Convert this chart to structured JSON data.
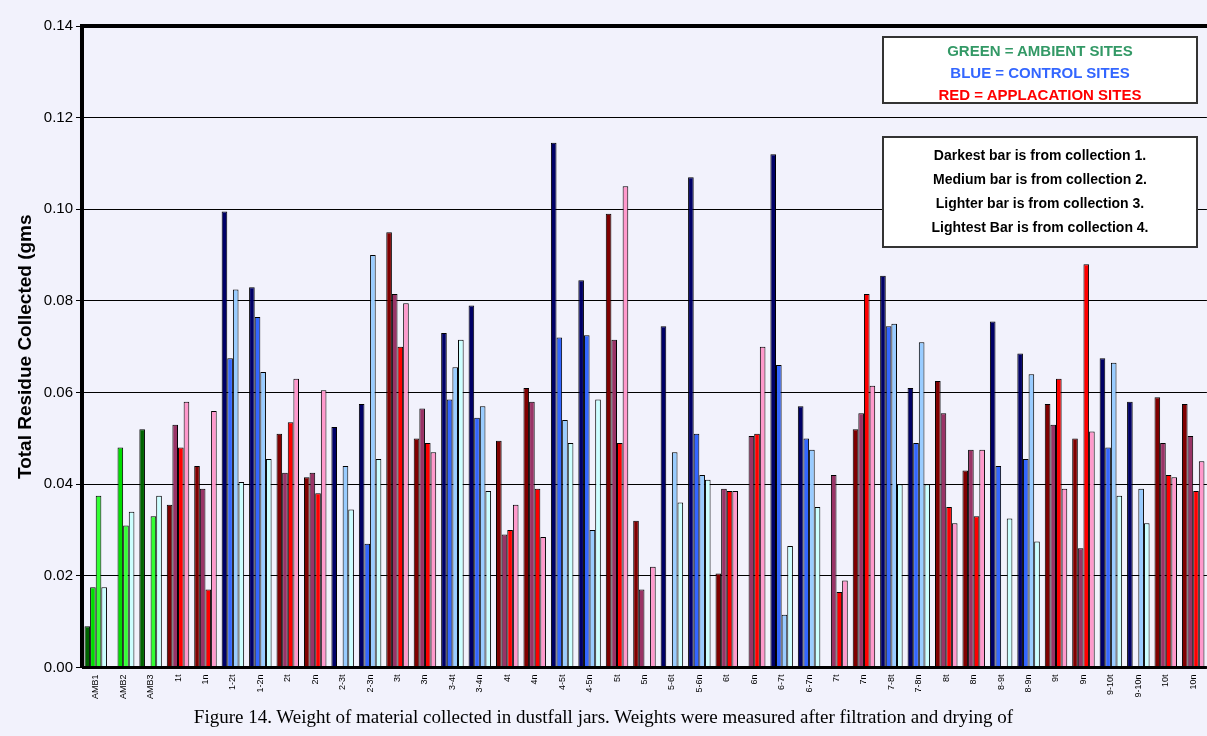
{
  "chart_data": {
    "type": "bar",
    "ylabel": "Total Residue Collected (gms",
    "categories": [
      "AMB1",
      "AMB2",
      "AMB3",
      "1t",
      "1n",
      "1-2t",
      "1-2n",
      "2t",
      "2n",
      "2-3t",
      "2-3n",
      "3t",
      "3n",
      "3-4t",
      "3-4n",
      "4t",
      "4n",
      "4-5t",
      "4-5n",
      "5t",
      "5n",
      "5-6t",
      "5-6n",
      "6t",
      "6n",
      "6-7t",
      "6-7n",
      "7t",
      "7n",
      "7-8t",
      "7-8n",
      "8t",
      "8n",
      "8-9t",
      "8-9n",
      "9t",
      "9n",
      "9-10t",
      "9-10n",
      "10t",
      "10n"
    ],
    "series": [
      {
        "colors": [
          "#006400",
          "#006400",
          "#006400",
          "#800000",
          "#800000",
          "#000066",
          "#000066",
          "#800000",
          "#800000",
          "#000066",
          "#000066",
          "#800000",
          "#800000",
          "#000066",
          "#000066",
          "#800000",
          "#800000",
          "#000066",
          "#000066",
          "#800000",
          "#800000",
          "#000066",
          "#000066",
          "#800000",
          "#800000",
          "#000066",
          "#000066",
          "#800000",
          "#800000",
          "#000066",
          "#000066",
          "#800000",
          "#800000",
          "#000066",
          "#000066",
          "#800000",
          "#800000",
          "#000066",
          "#000066",
          "#800000",
          "#800000"
        ],
        "values": [
          0.009,
          null,
          0.052,
          0.0355,
          0.044,
          0.0995,
          0.083,
          0.051,
          0.0415,
          0.0525,
          0.0575,
          0.095,
          0.05,
          0.073,
          0.079,
          0.0495,
          0.061,
          0.1145,
          0.0845,
          0.099,
          0.032,
          0.0745,
          0.107,
          0.0205,
          null,
          0.112,
          0.057,
          null,
          0.052,
          0.0855,
          0.061,
          0.0625,
          0.043,
          0.0755,
          0.0685,
          0.0575,
          0.05,
          0.0675,
          0.058,
          0.059,
          0.0575
        ]
      },
      {
        "colors": [
          "#00dd00",
          "#00dd00",
          "#00dd00",
          "#993366",
          "#993366",
          "#3366ff",
          "#3366ff",
          "#993366",
          "#993366",
          "#3366ff",
          "#3366ff",
          "#993366",
          "#993366",
          "#3366ff",
          "#3366ff",
          "#993366",
          "#993366",
          "#3366ff",
          "#3366ff",
          "#993366",
          "#993366",
          "#3366ff",
          "#3366ff",
          "#993366",
          "#993366",
          "#3366ff",
          "#3366ff",
          "#993366",
          "#993366",
          "#3366ff",
          "#3366ff",
          "#993366",
          "#993366",
          "#3366ff",
          "#3366ff",
          "#993366",
          "#993366",
          "#3366ff",
          "#3366ff",
          "#993366",
          "#993366"
        ],
        "values": [
          0.0175,
          0.048,
          null,
          0.053,
          0.039,
          0.0675,
          0.0765,
          0.0425,
          0.0425,
          null,
          0.027,
          0.0815,
          0.0565,
          0.0585,
          0.0545,
          0.029,
          0.058,
          0.072,
          0.0725,
          0.0715,
          0.017,
          null,
          0.051,
          0.039,
          0.0505,
          0.066,
          0.05,
          0.042,
          0.0555,
          0.0745,
          0.049,
          0.0555,
          0.0475,
          0.044,
          0.0455,
          0.053,
          0.026,
          0.048,
          null,
          0.049,
          0.0505
        ]
      },
      {
        "colors": [
          "#33ff33",
          "#33ff33",
          "#33ff33",
          "#ff0000",
          "#ff0000",
          "#99ccff",
          "#99ccff",
          "#ff0000",
          "#ff0000",
          "#99ccff",
          "#99ccff",
          "#ff0000",
          "#ff0000",
          "#99ccff",
          "#99ccff",
          "#ff0000",
          "#ff0000",
          "#99ccff",
          "#99ccff",
          "#ff0000",
          "#ff0000",
          "#99ccff",
          "#99ccff",
          "#ff0000",
          "#ff0000",
          "#99ccff",
          "#99ccff",
          "#ff0000",
          "#ff0000",
          "#99ccff",
          "#99ccff",
          "#ff0000",
          "#ff0000",
          "#99ccff",
          "#99ccff",
          "#ff0000",
          "#ff0000",
          "#99ccff",
          "#99ccff",
          "#ff0000",
          "#ff0000"
        ],
        "values": [
          0.0375,
          0.031,
          0.033,
          0.048,
          0.017,
          0.0825,
          0.0645,
          0.0535,
          0.038,
          0.044,
          0.09,
          0.07,
          0.049,
          0.0655,
          0.057,
          0.03,
          0.039,
          0.054,
          0.03,
          0.049,
          null,
          0.047,
          0.042,
          0.0385,
          0.051,
          0.0115,
          0.0475,
          0.0165,
          0.0815,
          0.075,
          0.071,
          0.035,
          0.033,
          null,
          0.064,
          0.063,
          0.088,
          0.0665,
          0.039,
          0.042,
          0.0385
        ]
      },
      {
        "colors": [
          "#ccffff",
          "#ccffff",
          "#ccffff",
          "#ff99cc",
          "#ff99cc",
          "#ccffff",
          "#ccffff",
          "#ff99cc",
          "#ff99cc",
          "#ccffff",
          "#ccffff",
          "#ff99cc",
          "#ff99cc",
          "#ccffff",
          "#ccffff",
          "#ff99cc",
          "#ff99cc",
          "#ccffff",
          "#ccffff",
          "#ff99cc",
          "#ff99cc",
          "#ccffff",
          "#ccffff",
          "#ff99cc",
          "#ff99cc",
          "#ccffff",
          "#ccffff",
          "#ff99cc",
          "#ff99cc",
          "#ccffff",
          "#ccffff",
          "#ff99cc",
          "#ff99cc",
          "#ccffff",
          "#ccffff",
          "#ff99cc",
          "#ff99cc",
          "#ccffff",
          "#ccffff",
          "#ff99cc",
          "#ff99cc"
        ],
        "values": [
          0.0175,
          0.034,
          0.0375,
          0.058,
          0.056,
          0.0405,
          0.0455,
          0.063,
          0.0605,
          0.0345,
          0.0455,
          0.0795,
          0.047,
          0.0715,
          0.0385,
          0.0355,
          0.0285,
          0.049,
          0.0585,
          0.105,
          0.022,
          0.036,
          0.041,
          0.0385,
          0.07,
          0.0265,
          0.035,
          0.019,
          0.0615,
          0.04,
          0.04,
          0.0315,
          0.0475,
          0.0325,
          0.0275,
          0.039,
          0.0515,
          0.0375,
          0.0315,
          0.0415,
          0.045
        ]
      }
    ],
    "ylim": [
      0,
      0.14
    ],
    "yticks": [
      {
        "value": 0,
        "label": "0.00"
      },
      {
        "value": 0.02,
        "label": "0.02"
      },
      {
        "value": 0.04,
        "label": "0.04"
      },
      {
        "value": 0.06,
        "label": "0.06"
      },
      {
        "value": 0.08,
        "label": "0.08"
      },
      {
        "value": 0.1,
        "label": "0.10"
      },
      {
        "value": 0.12,
        "label": "0.12"
      },
      {
        "value": 0.14,
        "label": "0.14"
      }
    ],
    "grid": "y",
    "legend": false,
    "annotations": [
      "GREEN = AMBIENT SITES",
      "BLUE = CONTROL SITES",
      "RED = APPLACATION SITES",
      "Darkest bar is from collection 1.",
      "Medium bar is from collection 2.",
      "Lighter bar is from collection 3.",
      "Lightest Bar is from collection 4.",
      "Figure 14. Weight of material collected in dustfall jars. Weights were measured after filtration and drying of"
    ]
  }
}
